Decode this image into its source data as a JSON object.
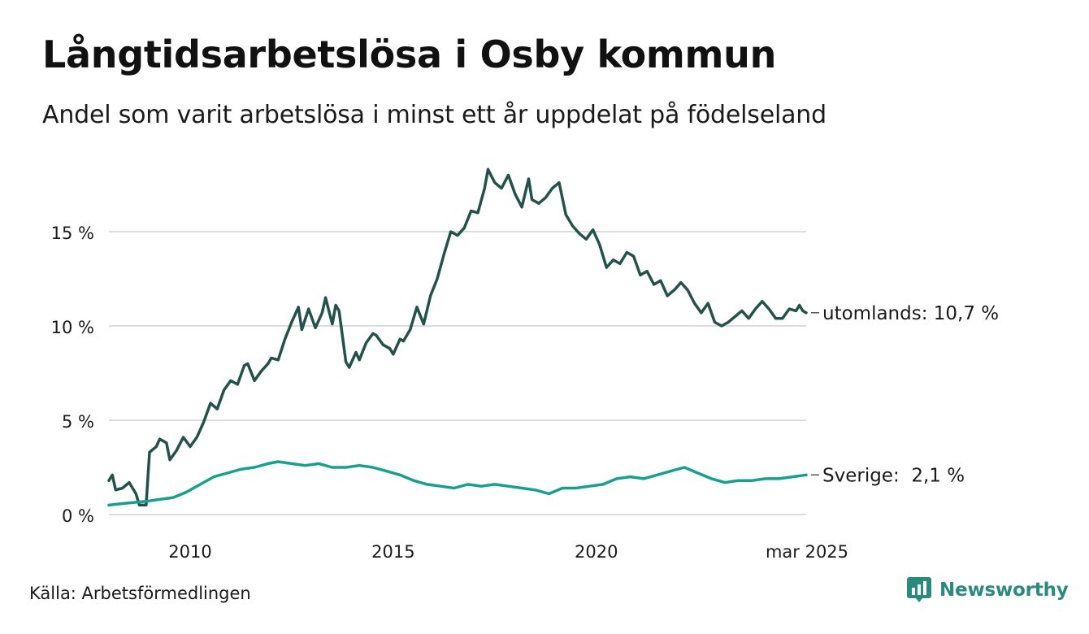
{
  "header": {
    "title": "Långtidsarbetslösa i Osby kommun",
    "subtitle": "Andel som varit arbetslösa i minst ett år uppdelat på födelseland"
  },
  "footer": {
    "source": "Källa: Arbetsförmedlingen",
    "brand": "Newsworthy"
  },
  "colors": {
    "utomlands": "#24524a",
    "sverige": "#17a08e",
    "grid": "#dcdcdc",
    "brand": "#2b8a7e"
  },
  "chart_data": {
    "type": "line",
    "title": "Långtidsarbetslösa i Osby kommun",
    "subtitle": "Andel som varit arbetslösa i minst ett år uppdelat på födelseland",
    "xlim": [
      "2008-01",
      "2025-03"
    ],
    "ylim": [
      0,
      18.5
    ],
    "y_ticks": [
      0,
      5,
      10,
      15
    ],
    "y_tick_labels": [
      "0 %",
      "5 %",
      "10 %",
      "15 %"
    ],
    "x_ticks": [
      "2010-01",
      "2015-01",
      "2020-01",
      "2025-03"
    ],
    "x_tick_labels": [
      "2010",
      "2015",
      "2020",
      "mar 2025"
    ],
    "grid": "horizontal",
    "series": [
      {
        "name": "utomlands",
        "end_label": "utomlands: 10,7 %",
        "points": [
          [
            "2008-01",
            1.8
          ],
          [
            "2008-02",
            2.1
          ],
          [
            "2008-03",
            1.3
          ],
          [
            "2008-05",
            1.4
          ],
          [
            "2008-07",
            1.7
          ],
          [
            "2008-09",
            1.1
          ],
          [
            "2008-10",
            0.5
          ],
          [
            "2008-12",
            0.5
          ],
          [
            "2009-01",
            3.3
          ],
          [
            "2009-03",
            3.6
          ],
          [
            "2009-04",
            4.0
          ],
          [
            "2009-06",
            3.8
          ],
          [
            "2009-07",
            2.9
          ],
          [
            "2009-09",
            3.4
          ],
          [
            "2009-11",
            4.1
          ],
          [
            "2010-01",
            3.6
          ],
          [
            "2010-03",
            4.1
          ],
          [
            "2010-05",
            4.9
          ],
          [
            "2010-07",
            5.9
          ],
          [
            "2010-09",
            5.6
          ],
          [
            "2010-11",
            6.6
          ],
          [
            "2011-01",
            7.1
          ],
          [
            "2011-03",
            6.9
          ],
          [
            "2011-05",
            7.9
          ],
          [
            "2011-06",
            8.0
          ],
          [
            "2011-08",
            7.1
          ],
          [
            "2011-10",
            7.6
          ],
          [
            "2011-12",
            8.0
          ],
          [
            "2012-01",
            8.3
          ],
          [
            "2012-03",
            8.2
          ],
          [
            "2012-05",
            9.3
          ],
          [
            "2012-07",
            10.2
          ],
          [
            "2012-09",
            11.0
          ],
          [
            "2012-10",
            9.8
          ],
          [
            "2012-12",
            10.9
          ],
          [
            "2013-02",
            9.9
          ],
          [
            "2013-04",
            10.7
          ],
          [
            "2013-05",
            11.5
          ],
          [
            "2013-07",
            10.1
          ],
          [
            "2013-08",
            11.1
          ],
          [
            "2013-09",
            10.8
          ],
          [
            "2013-11",
            8.1
          ],
          [
            "2013-12",
            7.8
          ],
          [
            "2014-02",
            8.6
          ],
          [
            "2014-03",
            8.2
          ],
          [
            "2014-05",
            9.1
          ],
          [
            "2014-07",
            9.6
          ],
          [
            "2014-08",
            9.5
          ],
          [
            "2014-10",
            9.0
          ],
          [
            "2014-12",
            8.8
          ],
          [
            "2015-01",
            8.5
          ],
          [
            "2015-03",
            9.3
          ],
          [
            "2015-04",
            9.2
          ],
          [
            "2015-06",
            9.8
          ],
          [
            "2015-08",
            11.0
          ],
          [
            "2015-10",
            10.1
          ],
          [
            "2015-12",
            11.6
          ],
          [
            "2016-02",
            12.5
          ],
          [
            "2016-04",
            13.8
          ],
          [
            "2016-06",
            15.0
          ],
          [
            "2016-08",
            14.8
          ],
          [
            "2016-10",
            15.2
          ],
          [
            "2016-12",
            16.1
          ],
          [
            "2017-02",
            16.0
          ],
          [
            "2017-04",
            17.3
          ],
          [
            "2017-05",
            18.3
          ],
          [
            "2017-07",
            17.6
          ],
          [
            "2017-09",
            17.3
          ],
          [
            "2017-11",
            18.0
          ],
          [
            "2018-01",
            17.0
          ],
          [
            "2018-03",
            16.3
          ],
          [
            "2018-05",
            17.8
          ],
          [
            "2018-06",
            16.7
          ],
          [
            "2018-08",
            16.5
          ],
          [
            "2018-10",
            16.8
          ],
          [
            "2018-12",
            17.3
          ],
          [
            "2019-02",
            17.6
          ],
          [
            "2019-04",
            15.9
          ],
          [
            "2019-06",
            15.3
          ],
          [
            "2019-08",
            14.9
          ],
          [
            "2019-10",
            14.6
          ],
          [
            "2019-12",
            15.1
          ],
          [
            "2020-02",
            14.3
          ],
          [
            "2020-04",
            13.1
          ],
          [
            "2020-06",
            13.5
          ],
          [
            "2020-08",
            13.3
          ],
          [
            "2020-10",
            13.9
          ],
          [
            "2020-12",
            13.7
          ],
          [
            "2021-02",
            12.7
          ],
          [
            "2021-04",
            12.9
          ],
          [
            "2021-06",
            12.2
          ],
          [
            "2021-08",
            12.4
          ],
          [
            "2021-10",
            11.6
          ],
          [
            "2021-12",
            11.9
          ],
          [
            "2022-02",
            12.3
          ],
          [
            "2022-04",
            11.9
          ],
          [
            "2022-06",
            11.2
          ],
          [
            "2022-08",
            10.7
          ],
          [
            "2022-10",
            11.2
          ],
          [
            "2022-12",
            10.2
          ],
          [
            "2023-02",
            10.0
          ],
          [
            "2023-04",
            10.2
          ],
          [
            "2023-06",
            10.5
          ],
          [
            "2023-08",
            10.8
          ],
          [
            "2023-10",
            10.4
          ],
          [
            "2023-12",
            10.9
          ],
          [
            "2024-02",
            11.3
          ],
          [
            "2024-04",
            10.9
          ],
          [
            "2024-06",
            10.4
          ],
          [
            "2024-08",
            10.4
          ],
          [
            "2024-10",
            10.9
          ],
          [
            "2024-12",
            10.8
          ],
          [
            "2025-01",
            11.1
          ],
          [
            "2025-02",
            10.8
          ],
          [
            "2025-03",
            10.7
          ]
        ]
      },
      {
        "name": "Sverige",
        "end_label": "Sverige:  2,1 %",
        "points": [
          [
            "2008-01",
            0.5
          ],
          [
            "2008-06",
            0.6
          ],
          [
            "2008-12",
            0.7
          ],
          [
            "2009-04",
            0.8
          ],
          [
            "2009-08",
            0.9
          ],
          [
            "2009-12",
            1.2
          ],
          [
            "2010-04",
            1.6
          ],
          [
            "2010-08",
            2.0
          ],
          [
            "2010-12",
            2.2
          ],
          [
            "2011-04",
            2.4
          ],
          [
            "2011-08",
            2.5
          ],
          [
            "2011-12",
            2.7
          ],
          [
            "2012-03",
            2.8
          ],
          [
            "2012-07",
            2.7
          ],
          [
            "2012-11",
            2.6
          ],
          [
            "2013-03",
            2.7
          ],
          [
            "2013-07",
            2.5
          ],
          [
            "2013-11",
            2.5
          ],
          [
            "2014-03",
            2.6
          ],
          [
            "2014-07",
            2.5
          ],
          [
            "2014-11",
            2.3
          ],
          [
            "2015-03",
            2.1
          ],
          [
            "2015-07",
            1.8
          ],
          [
            "2015-11",
            1.6
          ],
          [
            "2016-03",
            1.5
          ],
          [
            "2016-07",
            1.4
          ],
          [
            "2016-11",
            1.6
          ],
          [
            "2017-03",
            1.5
          ],
          [
            "2017-07",
            1.6
          ],
          [
            "2017-11",
            1.5
          ],
          [
            "2018-03",
            1.4
          ],
          [
            "2018-07",
            1.3
          ],
          [
            "2018-11",
            1.1
          ],
          [
            "2019-03",
            1.4
          ],
          [
            "2019-07",
            1.4
          ],
          [
            "2019-11",
            1.5
          ],
          [
            "2020-03",
            1.6
          ],
          [
            "2020-07",
            1.9
          ],
          [
            "2020-11",
            2.0
          ],
          [
            "2021-03",
            1.9
          ],
          [
            "2021-07",
            2.1
          ],
          [
            "2021-11",
            2.3
          ],
          [
            "2022-03",
            2.5
          ],
          [
            "2022-07",
            2.2
          ],
          [
            "2022-11",
            1.9
          ],
          [
            "2023-03",
            1.7
          ],
          [
            "2023-07",
            1.8
          ],
          [
            "2023-11",
            1.8
          ],
          [
            "2024-03",
            1.9
          ],
          [
            "2024-07",
            1.9
          ],
          [
            "2024-11",
            2.0
          ],
          [
            "2025-03",
            2.1
          ]
        ]
      }
    ]
  }
}
